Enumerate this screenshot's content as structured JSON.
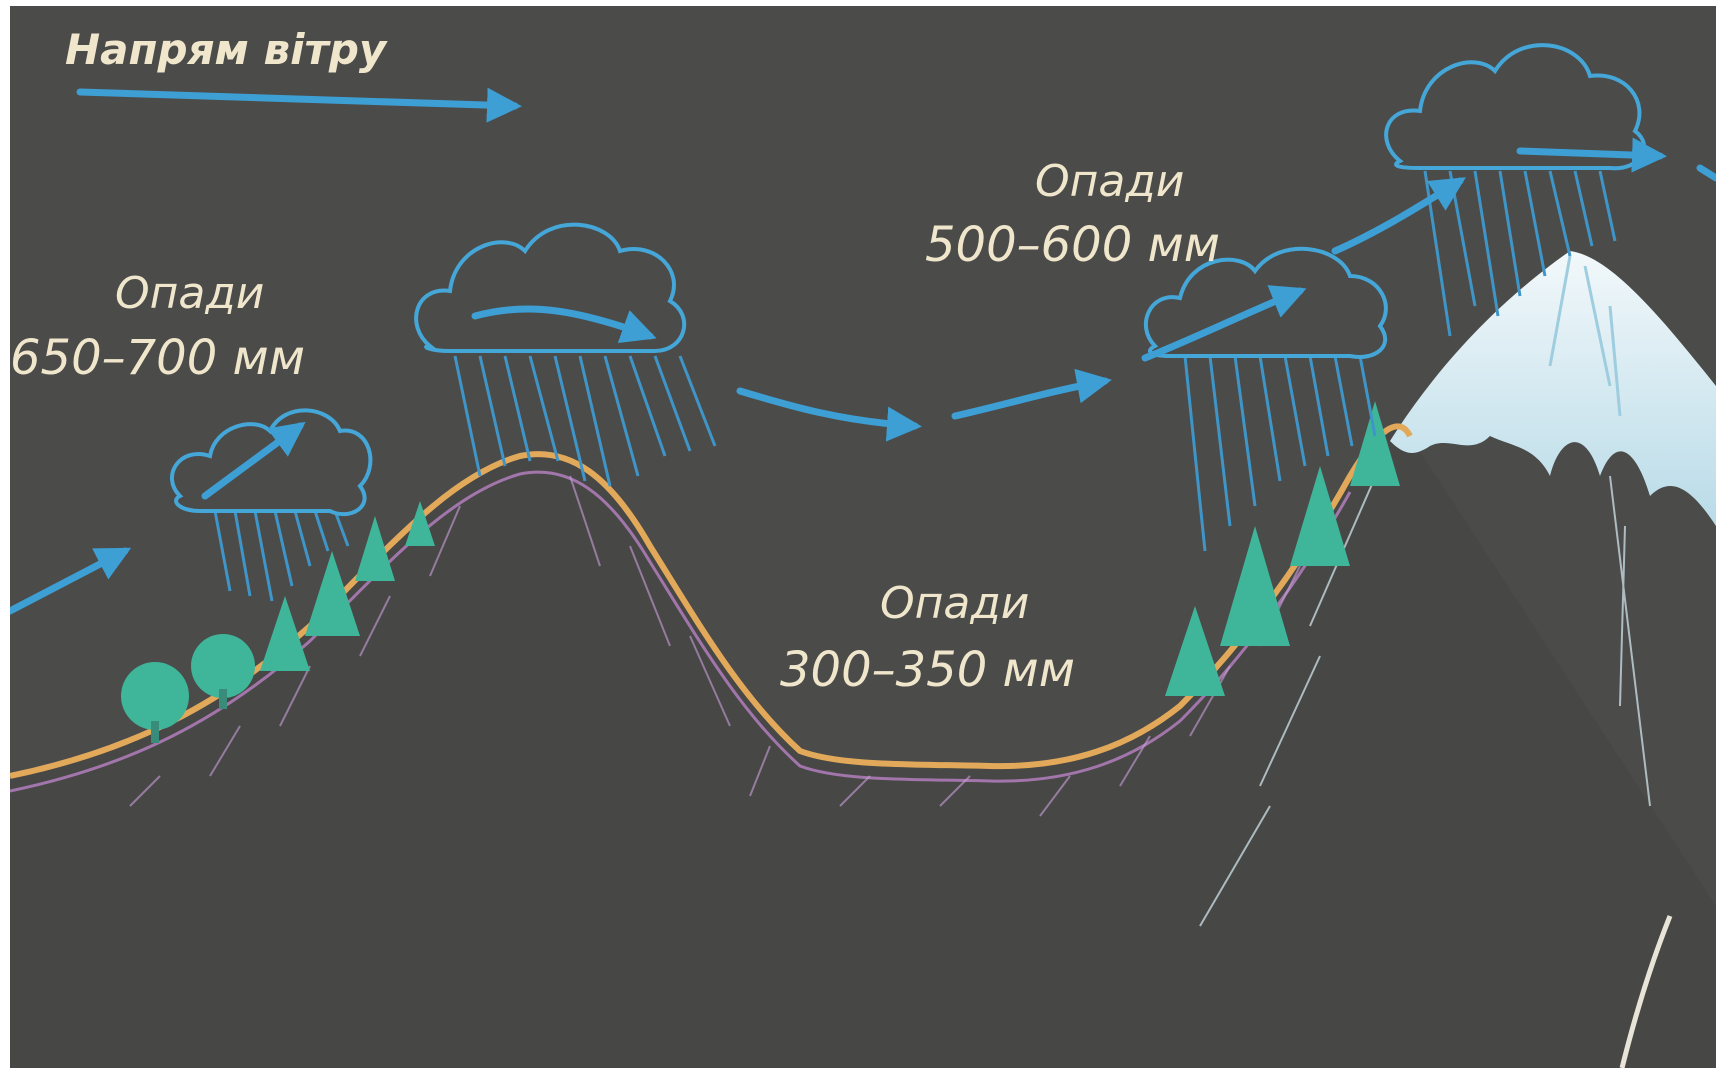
{
  "wind": {
    "label": "Напрям вітру"
  },
  "precipitation": [
    {
      "label": "Опади",
      "amount": "650–700 мм"
    },
    {
      "label": "Опади",
      "amount": "300–350 мм"
    },
    {
      "label": "Опади",
      "amount": "500–600 мм"
    }
  ],
  "colors": {
    "background": "#4b4b4a",
    "wind_arrow": "#3d9fd4",
    "cloud": "#45a6d8",
    "rain": "#3f95c7",
    "ridge": "#e2a95a",
    "forest": "#3fb59a",
    "snow": "#e7f2f5",
    "text": "#efe6cc"
  }
}
